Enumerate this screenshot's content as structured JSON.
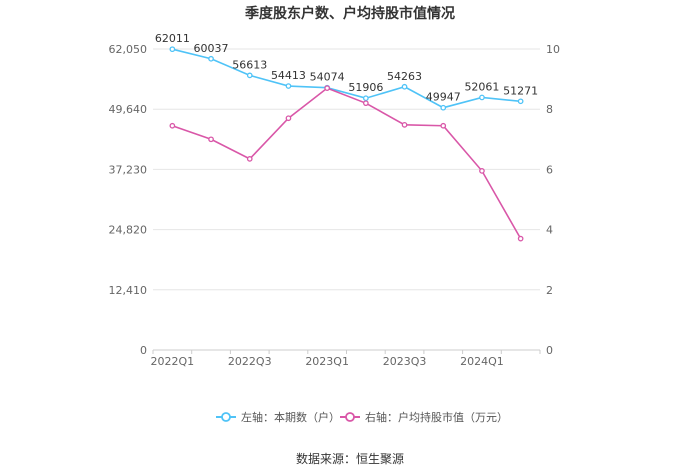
{
  "chart_data": {
    "type": "line",
    "title": "季度股东户数、户均持股市值情况",
    "source": "数据来源：恒生聚源",
    "categories": [
      "2022Q1",
      "2022Q2",
      "2022Q3",
      "2022Q4",
      "2023Q1",
      "2023Q2",
      "2023Q3",
      "2023Q4",
      "2024Q1",
      "2024Q2"
    ],
    "x_tick_labels": [
      "2022Q1",
      "2022Q3",
      "2023Q1",
      "2023Q3",
      "2024Q1"
    ],
    "left_axis": {
      "ticks": [
        "0",
        "12,410",
        "24,820",
        "37,230",
        "49,640",
        "62,050"
      ],
      "min": 0,
      "max": 62050
    },
    "right_axis": {
      "ticks": [
        "0",
        "2",
        "4",
        "6",
        "8",
        "10"
      ],
      "min": 0,
      "max": 10
    },
    "grid": true,
    "legend_position": "bottom",
    "series": [
      {
        "name": "左轴：本期数（户）",
        "axis": "left",
        "color": "#4fc3f7",
        "values": [
          62011,
          60037,
          56613,
          54413,
          54074,
          51906,
          54263,
          49947,
          52061,
          51271
        ],
        "labels": [
          "62011",
          "60037",
          "56613",
          "54413",
          "54074",
          "51906",
          "54263",
          "49947",
          "52061",
          "51271"
        ]
      },
      {
        "name": "右轴：户均持股市值（万元）",
        "axis": "right",
        "color": "#d957a8",
        "values": [
          7.45,
          7.0,
          6.35,
          7.7,
          8.7,
          8.2,
          7.48,
          7.45,
          5.95,
          3.7
        ]
      }
    ]
  }
}
